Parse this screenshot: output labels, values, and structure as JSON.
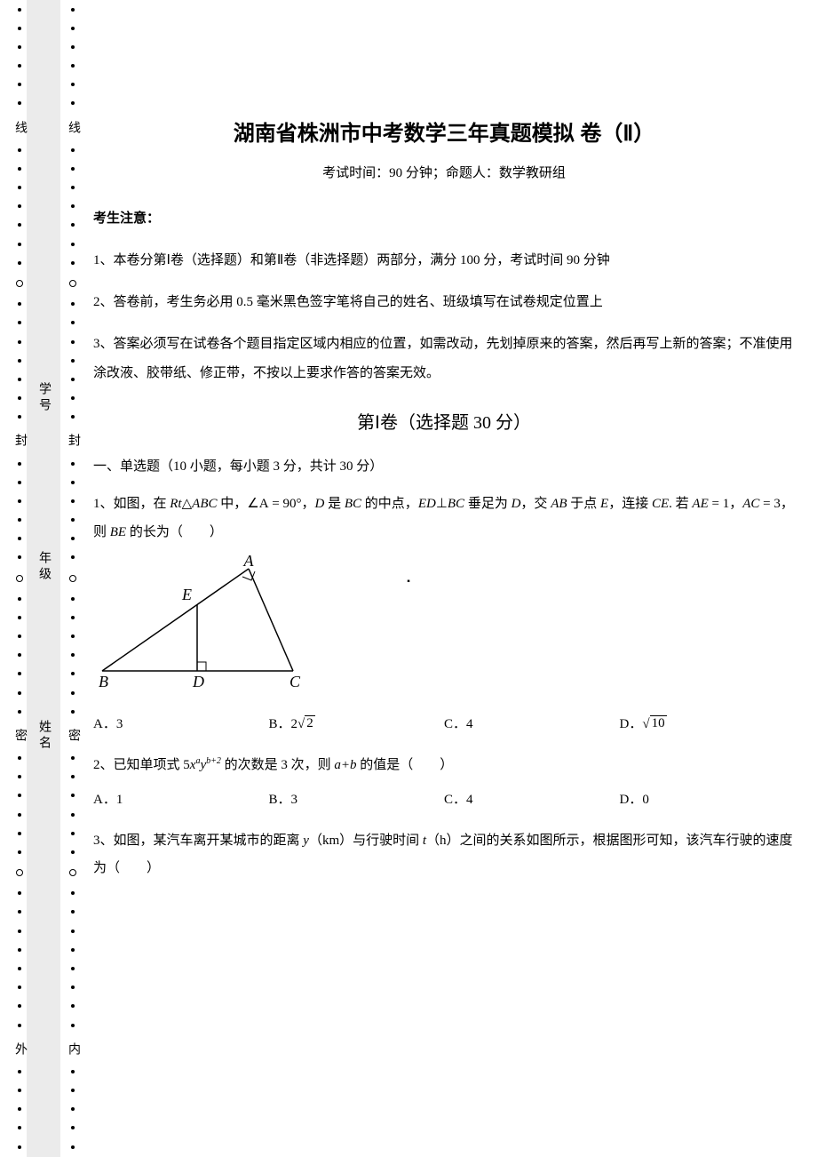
{
  "sidebar": {
    "outer_chars": [
      "线",
      "封",
      "密",
      "外"
    ],
    "inner_chars": [
      "线",
      "封",
      "密",
      "内"
    ],
    "labels": [
      "学号",
      "年级",
      "姓名"
    ]
  },
  "title": "湖南省株洲市中考数学三年真题模拟 卷（Ⅱ）",
  "subtitle": "考试时间：90 分钟；命题人：数学教研组",
  "notice_head": "考生注意：",
  "notice_1": "1、本卷分第Ⅰ卷（选择题）和第Ⅱ卷（非选择题）两部分，满分 100 分，考试时间 90 分钟",
  "notice_2": "2、答卷前，考生务必用 0.5 毫米黑色签字笔将自己的姓名、班级填写在试卷规定位置上",
  "notice_3": "3、答案必须写在试卷各个题目指定区域内相应的位置，如需改动，先划掉原来的答案，然后再写上新的答案；不准使用涂改液、胶带纸、修正带，不按以上要求作答的答案无效。",
  "section1": "第Ⅰ卷（选择题  30 分）",
  "subsection1": "一、单选题（10 小题，每小题 3 分，共计 30 分）",
  "q1": {
    "prefix": "1、如图，在 ",
    "rt": "Rt",
    "tri": "△",
    "abc": "ABC",
    "mid1": " 中，",
    "angleA": "∠A",
    "eq90": " = 90°，",
    "D": "D",
    "mid2": " 是 ",
    "BC1": "BC",
    "mid3": " 的中点，",
    "ED": "ED",
    "perp": "⊥",
    "BC2": "BC",
    "mid4": " 垂足为 ",
    "D2": "D",
    "mid5": "，交 ",
    "AB": "AB",
    "mid6": " 于点 ",
    "E": "E",
    "mid7": "，连接 ",
    "CE": "CE",
    "mid8": ". 若 ",
    "AE1": "AE",
    "eq1": " = 1，",
    "AC": "AC",
    "eq3": " = 3，则 ",
    "BE": "BE",
    "tail": " 的长为（　　）",
    "optA": "A．3",
    "optB_pre": "B．",
    "optB_coef": "2",
    "optB_rad": "2",
    "optC": "C．4",
    "optD_pre": "D．",
    "optD_rad": "10",
    "triangle": {
      "A": "A",
      "B": "B",
      "C": "C",
      "D": "D",
      "E": "E"
    }
  },
  "q2": {
    "prefix": "2、已知单项式 5",
    "x": "x",
    "a": "a",
    "y": "y",
    "bplus2": "b+2",
    "mid": " 的次数是 3 次，则 ",
    "aplusb": "a+b",
    "tail": " 的值是（　　）",
    "optA": "A．1",
    "optB": "B．3",
    "optC": "C．4",
    "optD": "D．0"
  },
  "q3": {
    "prefix": "3、如图，某汽车离开某城市的距离 ",
    "y": "y",
    "km": "（km）与行驶时间 ",
    "t": "t",
    "h": "（h）之间的关系如图所示，根据图形可知，该汽车行驶的速度为（　　）"
  },
  "center_dot": "▪"
}
